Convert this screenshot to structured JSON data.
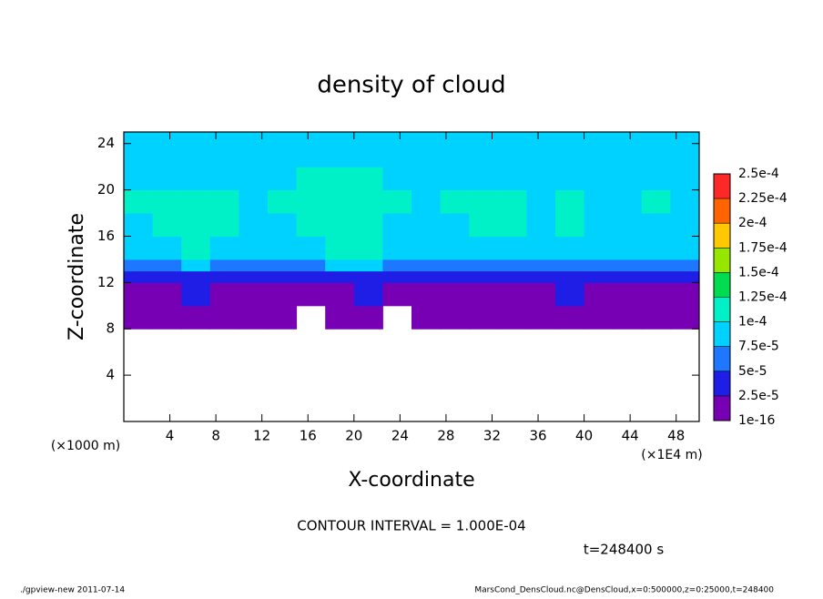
{
  "chart_data": {
    "type": "heatmap",
    "title": "density of cloud",
    "x_label": "X-coordinate",
    "y_label": "Z-coordinate",
    "x_unit": "(×1E4 m)",
    "y_unit": "(×1000 m)",
    "xlim": [
      0,
      50
    ],
    "ylim": [
      0,
      25
    ],
    "xticks": [
      4,
      8,
      12,
      16,
      20,
      24,
      28,
      32,
      36,
      40,
      44,
      48
    ],
    "yticks": [
      4,
      8,
      12,
      16,
      20,
      24
    ],
    "x_edges": [
      0,
      2.5,
      5,
      7.5,
      10,
      12.5,
      15,
      17.5,
      20,
      22.5,
      25,
      27.5,
      30,
      32.5,
      35,
      37.5,
      40,
      42.5,
      45,
      47.5,
      50
    ],
    "z_edges": [
      8,
      10,
      12,
      13,
      14,
      16,
      18,
      20,
      22,
      25
    ],
    "values": [
      [
        1e-05,
        2e-05,
        1e-05,
        1e-05,
        1e-05,
        1e-05,
        null,
        1e-05,
        1e-05,
        null,
        1e-05,
        1e-05,
        1e-05,
        1e-05,
        1e-05,
        1e-05,
        2e-05,
        1e-05,
        1e-05,
        1e-05
      ],
      [
        2e-05,
        2e-05,
        3e-05,
        2e-05,
        2e-05,
        2e-05,
        2e-05,
        2e-05,
        3e-05,
        2e-05,
        2e-05,
        2e-05,
        2e-05,
        2e-05,
        2e-05,
        3e-05,
        2e-05,
        2e-05,
        2e-05,
        2e-05
      ],
      [
        4e-05,
        4e-05,
        4e-05,
        4e-05,
        4e-05,
        4e-05,
        4e-05,
        4e-05,
        4e-05,
        4e-05,
        4e-05,
        4e-05,
        4e-05,
        4e-05,
        4e-05,
        4e-05,
        4e-05,
        4e-05,
        4e-05,
        4e-05
      ],
      [
        6e-05,
        6e-05,
        8e-05,
        6e-05,
        6e-05,
        6e-05,
        6e-05,
        8e-05,
        8e-05,
        6e-05,
        6e-05,
        6e-05,
        6e-05,
        6e-05,
        6e-05,
        6e-05,
        6e-05,
        6e-05,
        6e-05,
        6e-05
      ],
      [
        9e-05,
        9e-05,
        0.000105,
        9e-05,
        9e-05,
        9e-05,
        9e-05,
        0.000105,
        0.000105,
        9e-05,
        9e-05,
        9e-05,
        9e-05,
        9e-05,
        9e-05,
        9e-05,
        8.5e-05,
        8.5e-05,
        8.5e-05,
        8.5e-05
      ],
      [
        9e-05,
        0.000102,
        0.00011,
        0.000102,
        9e-05,
        9e-05,
        0.000105,
        0.000112,
        0.00011,
        9e-05,
        9e-05,
        9.5e-05,
        0.000102,
        0.000102,
        9e-05,
        0.000102,
        9e-05,
        9e-05,
        9e-05,
        8.5e-05
      ],
      [
        0.000102,
        0.000102,
        0.00011,
        0.000102,
        9.5e-05,
        0.000102,
        0.000105,
        0.00011,
        0.00011,
        0.000102,
        9e-05,
        0.000102,
        0.000102,
        0.000102,
        9.5e-05,
        0.000102,
        9.5e-05,
        9e-05,
        0.000102,
        9e-05
      ],
      [
        8.5e-05,
        8.5e-05,
        9e-05,
        8.5e-05,
        8.5e-05,
        8.5e-05,
        0.000102,
        0.000102,
        0.000102,
        8.5e-05,
        8.5e-05,
        8.5e-05,
        8.5e-05,
        8.5e-05,
        8.5e-05,
        8.5e-05,
        8.5e-05,
        8.5e-05,
        8.5e-05,
        8.5e-05
      ],
      [
        8e-05,
        8e-05,
        8e-05,
        8e-05,
        8e-05,
        8e-05,
        8e-05,
        8e-05,
        8e-05,
        8e-05,
        8e-05,
        8e-05,
        8e-05,
        8e-05,
        8e-05,
        8e-05,
        8e-05,
        8e-05,
        8e-05,
        8e-05
      ]
    ],
    "levels": [
      {
        "value": 1e-16,
        "label": "1e-16"
      },
      {
        "value": 2.5e-05,
        "label": "2.5e-5"
      },
      {
        "value": 5e-05,
        "label": "5e-5"
      },
      {
        "value": 7.5e-05,
        "label": "7.5e-5"
      },
      {
        "value": 0.0001,
        "label": "1e-4"
      },
      {
        "value": 0.000125,
        "label": "1.25e-4"
      },
      {
        "value": 0.00015,
        "label": "1.5e-4"
      },
      {
        "value": 0.000175,
        "label": "1.75e-4"
      },
      {
        "value": 0.0002,
        "label": "2e-4"
      },
      {
        "value": 0.000225,
        "label": "2.25e-4"
      },
      {
        "value": 0.00025,
        "label": "2.5e-4"
      }
    ],
    "colors": [
      "#7800b4",
      "#1e1ee6",
      "#1e78ff",
      "#00d2ff",
      "#00f0c8",
      "#00dc50",
      "#96e600",
      "#ffc800",
      "#ff6400",
      "#ff2828"
    ],
    "contour_note": "CONTOUR INTERVAL = 1.000E-04",
    "time_note": "t=248400 s",
    "footer_left": "./gpview-new  2011-07-14",
    "footer_right": "MarsCond_DensCloud.nc@DensCloud,x=0:500000,z=0:25000,t=248400"
  }
}
